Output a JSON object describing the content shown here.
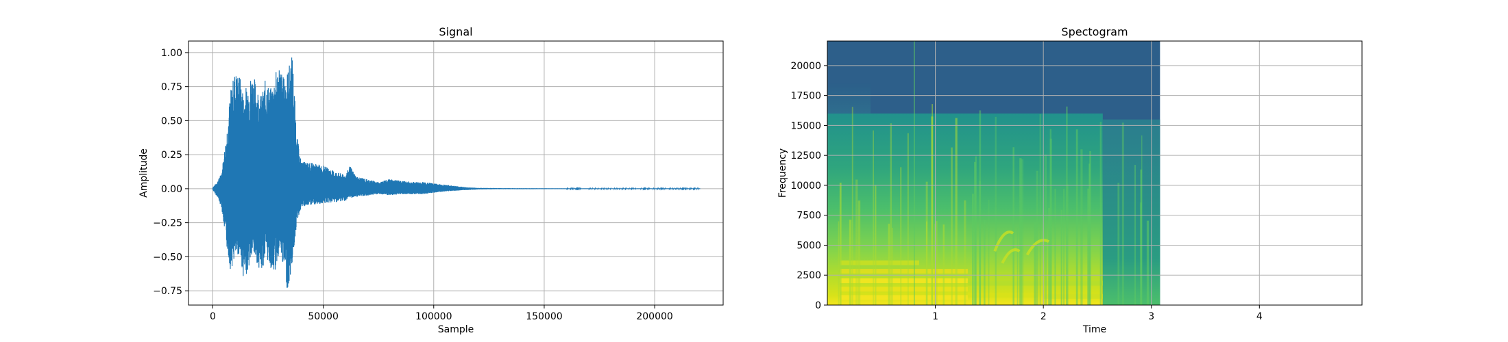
{
  "chart_data": [
    {
      "type": "line",
      "title": "Signal",
      "xlabel": "Sample",
      "ylabel": "Amplitude",
      "xlim": [
        -11000,
        231000
      ],
      "ylim": [
        -0.855,
        1.085
      ],
      "xticks": [
        0,
        50000,
        100000,
        150000,
        200000
      ],
      "xtick_labels": [
        "0",
        "50000",
        "100000",
        "150000",
        "200000"
      ],
      "yticks": [
        -0.75,
        -0.5,
        -0.25,
        0.0,
        0.25,
        0.5,
        0.75,
        1.0
      ],
      "ytick_labels": [
        "−0.75",
        "−0.50",
        "−0.25",
        "0.00",
        "0.25",
        "0.50",
        "0.75",
        "1.00"
      ],
      "grid": true,
      "color": "#1f77b4",
      "series": [
        {
          "x": [
            0,
            2000,
            4000,
            6000,
            8000,
            10000,
            12000,
            14000,
            16000,
            18000,
            20000,
            22000,
            24000,
            26000,
            28000,
            30000,
            32000,
            34000,
            36000,
            38000,
            40000,
            45000,
            50000,
            55000,
            60000,
            62000,
            65000,
            70000,
            75000,
            80000,
            85000,
            90000,
            95000,
            100000,
            105000,
            110000,
            115000,
            120000,
            130000,
            140000,
            160000,
            180000,
            200000,
            220500
          ],
          "upper": [
            0.01,
            0.05,
            0.12,
            0.38,
            0.72,
            0.87,
            0.85,
            0.7,
            0.8,
            0.86,
            0.76,
            0.68,
            0.82,
            0.73,
            0.84,
            0.93,
            0.82,
            0.88,
            1.0,
            0.4,
            0.2,
            0.19,
            0.17,
            0.13,
            0.1,
            0.17,
            0.09,
            0.07,
            0.05,
            0.07,
            0.06,
            0.05,
            0.05,
            0.04,
            0.03,
            0.02,
            0.01,
            0.006,
            0.004,
            0.003,
            0.002,
            0.002,
            0.002,
            0.002
          ],
          "lower": [
            -0.01,
            -0.06,
            -0.14,
            -0.4,
            -0.6,
            -0.52,
            -0.48,
            -0.67,
            -0.6,
            -0.49,
            -0.55,
            -0.62,
            -0.5,
            -0.58,
            -0.63,
            -0.47,
            -0.57,
            -0.77,
            -0.55,
            -0.25,
            -0.14,
            -0.12,
            -0.11,
            -0.1,
            -0.09,
            -0.07,
            -0.06,
            -0.05,
            -0.04,
            -0.05,
            -0.04,
            -0.04,
            -0.04,
            -0.03,
            -0.02,
            -0.015,
            -0.01,
            -0.005,
            -0.003,
            -0.003,
            -0.002,
            -0.002,
            -0.002,
            -0.002
          ]
        }
      ]
    },
    {
      "type": "heatmap",
      "title": "Spectogram",
      "xlabel": "Time",
      "ylabel": "Frequency",
      "xlim": [
        0.0,
        4.95
      ],
      "ylim": [
        0,
        22050
      ],
      "xticks": [
        1,
        2,
        3,
        4
      ],
      "xtick_labels": [
        "1",
        "2",
        "3",
        "4"
      ],
      "yticks": [
        0,
        2500,
        5000,
        7500,
        10000,
        12500,
        15000,
        17500,
        20000
      ],
      "ytick_labels": [
        "0",
        "2500",
        "5000",
        "7500",
        "10000",
        "12500",
        "15000",
        "17500",
        "20000"
      ],
      "grid": true,
      "colormap": "viridis",
      "data_time_extent": [
        0.0,
        3.08
      ],
      "background_color": "#2d5f8a",
      "high_band_color": "#2f6b8e",
      "mid_color": "#3aa57a",
      "bright_color": "#c8e023",
      "peak_color": "#f3e51f"
    }
  ]
}
